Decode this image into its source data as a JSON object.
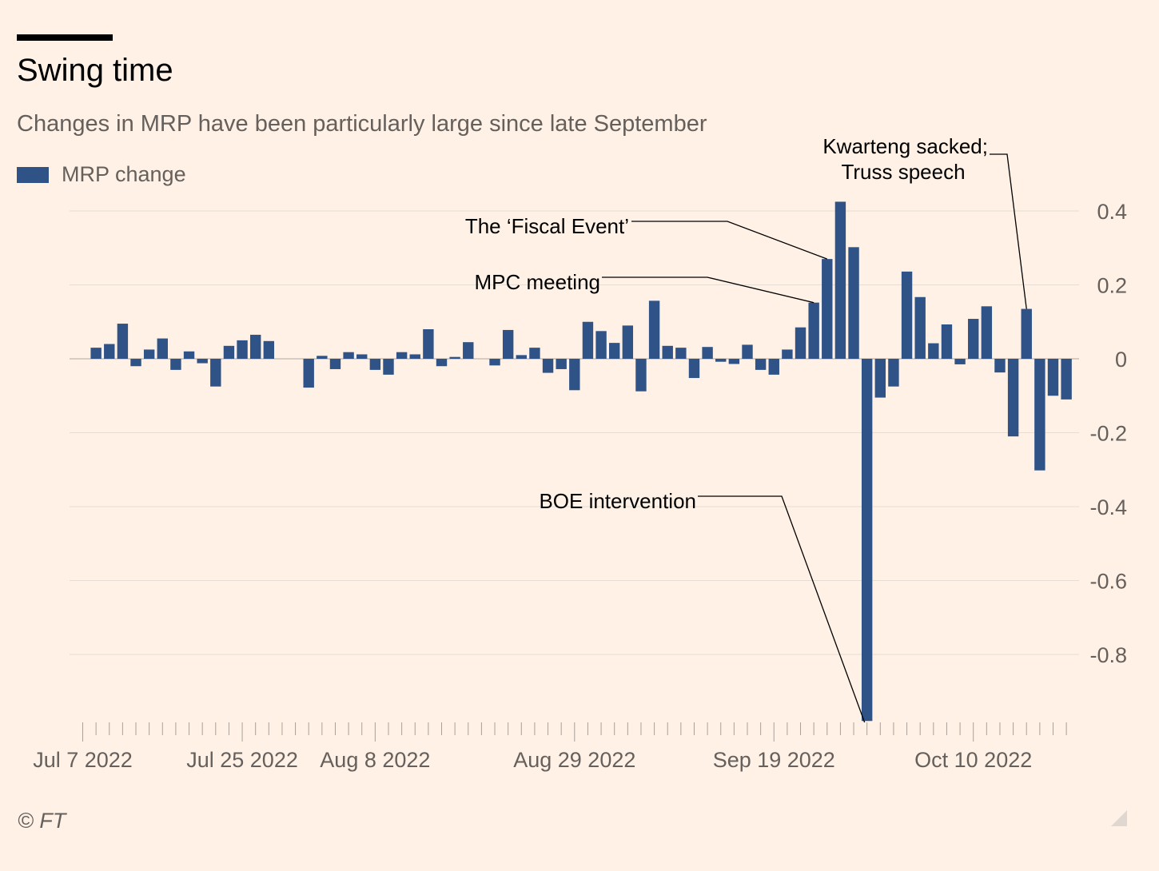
{
  "header": {
    "title": "Swing time",
    "subtitle": "Changes in MRP have been particularly large since late September"
  },
  "legend": {
    "label": "MRP change",
    "color": "#2f5287"
  },
  "footer": {
    "copyright": "© FT"
  },
  "colors": {
    "background": "#fff1e5",
    "bar": "#2f5287",
    "grid": "#e6ddd4",
    "text": "#66605c"
  },
  "chart_data": {
    "type": "bar",
    "title": "Swing time",
    "subtitle": "Changes in MRP have been particularly large since late September",
    "xlabel": "",
    "ylabel": "",
    "ylim": [
      -0.98,
      0.43
    ],
    "y_ticks": [
      0.4,
      0.2,
      0,
      -0.2,
      -0.4,
      -0.6,
      -0.8
    ],
    "y_tick_labels": [
      "0.4",
      "0.2",
      "0",
      "-0.2",
      "-0.4",
      "-0.6",
      "-0.8"
    ],
    "y_axis_side": "right",
    "grid": true,
    "legend": "top-left",
    "x_tick_labels": [
      {
        "label": "Jul 7 2022",
        "index": 0
      },
      {
        "label": "Jul 25 2022",
        "index": 12
      },
      {
        "label": "Aug 8 2022",
        "index": 22
      },
      {
        "label": "Aug 29 2022",
        "index": 37
      },
      {
        "label": "Sep 19 2022",
        "index": 52
      },
      {
        "label": "Oct 10 2022",
        "index": 67
      }
    ],
    "series": [
      {
        "name": "MRP change",
        "values": [
          0,
          0.03,
          0.04,
          0.095,
          -0.02,
          0.025,
          0.055,
          -0.03,
          0.02,
          -0.012,
          -0.075,
          0.035,
          0.05,
          0.065,
          0.048,
          0,
          0,
          -0.078,
          0.008,
          -0.028,
          0.018,
          0.012,
          -0.03,
          -0.043,
          0.018,
          0.012,
          0.08,
          -0.02,
          0.005,
          0.045,
          0,
          -0.018,
          0.078,
          0.01,
          0.03,
          -0.038,
          -0.028,
          -0.085,
          0.1,
          0.075,
          0.043,
          0.09,
          -0.088,
          0.157,
          0.035,
          0.03,
          -0.052,
          0.032,
          -0.008,
          -0.014,
          0.038,
          -0.03,
          -0.043,
          0.025,
          0.085,
          0.152,
          0.27,
          0.425,
          0.302,
          -0.98,
          -0.105,
          -0.075,
          0.236,
          0.167,
          0.042,
          0.093,
          -0.015,
          0.108,
          0.142,
          -0.037,
          -0.21,
          0.135,
          -0.302,
          -0.1,
          -0.11
        ]
      }
    ],
    "annotations": [
      {
        "text": "The ‘Fiscal Event’",
        "index": 56
      },
      {
        "text": "MPC meeting",
        "index": 55
      },
      {
        "text": "Kwarteng sacked;",
        "text2": "Truss speech",
        "index": 71
      },
      {
        "text": "BOE intervention",
        "index": 59
      }
    ]
  }
}
